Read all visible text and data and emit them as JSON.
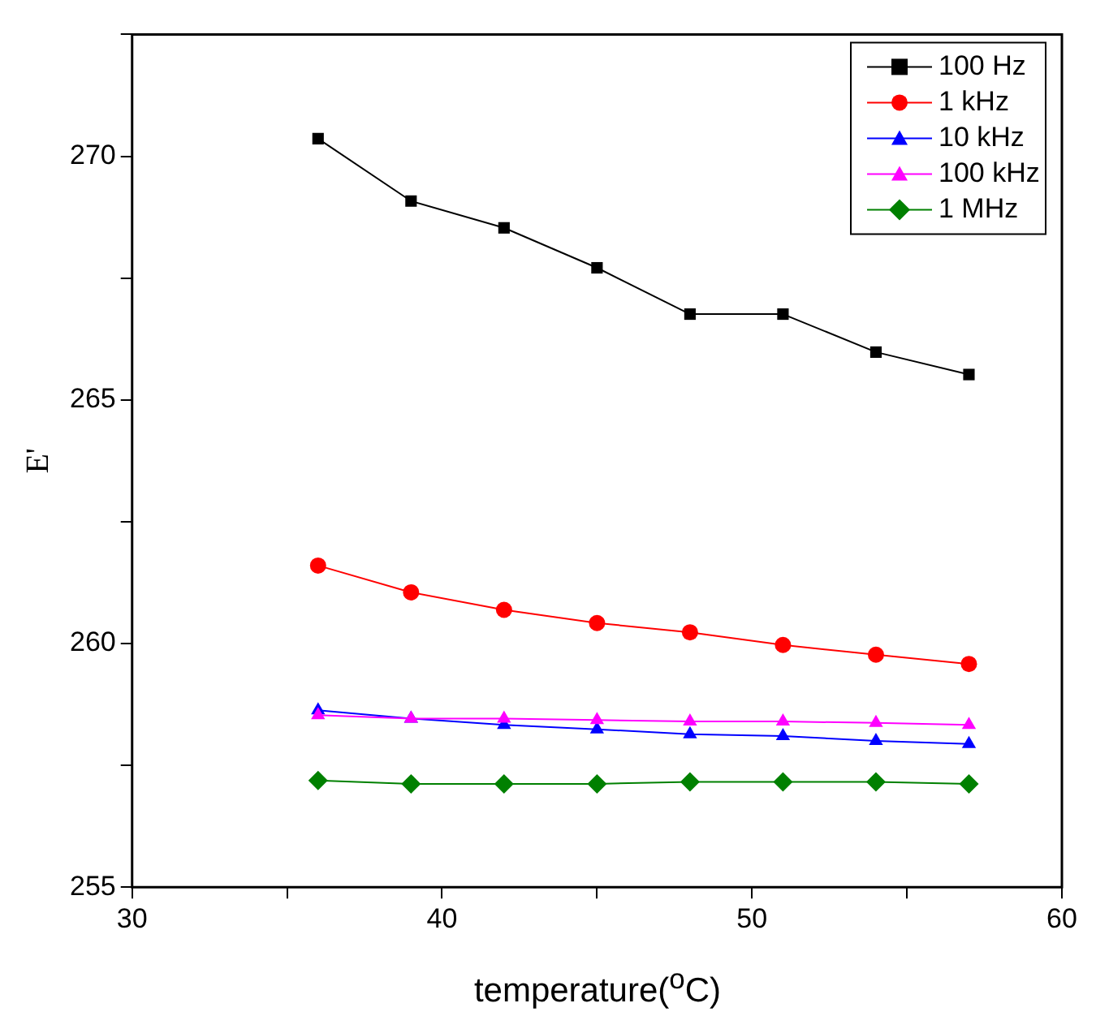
{
  "chart_data": {
    "type": "line",
    "xlabel": "temperature($^{o}$C)",
    "ylabel": "E'",
    "xlim": [
      30,
      60
    ],
    "xticks": [
      30,
      {
        "value": 35,
        "label": null
      },
      40,
      {
        "value": 45,
        "label": null
      },
      50,
      {
        "value": 55,
        "label": null
      },
      60
    ],
    "ylim": [
      255,
      272.5
    ],
    "yticks": [
      255,
      {
        "value": 257.5,
        "label": null
      },
      260,
      {
        "value": 262.5,
        "label": null
      },
      265,
      {
        "value": 267.5,
        "label": null
      },
      270,
      {
        "value": 272.5,
        "label": null
      }
    ],
    "grid": false,
    "legend": "top right",
    "line_style": "solid",
    "x": [
      36,
      39,
      42,
      45,
      48,
      51,
      54,
      57
    ],
    "series": [
      {
        "name": "100 Hz",
        "color": "#000000",
        "marker": "square",
        "values": [
          270.36,
          269.08,
          268.53,
          267.71,
          266.76,
          266.76,
          265.98,
          265.52
        ]
      },
      {
        "name": "1 kHz",
        "color": "#ff0000",
        "marker": "circle",
        "values": [
          261.6,
          261.05,
          260.69,
          260.42,
          260.23,
          259.97,
          259.77,
          259.58
        ]
      },
      {
        "name": "10 kHz",
        "color": "#0000ff",
        "marker": "triangle",
        "values": [
          258.63,
          258.46,
          258.33,
          258.24,
          258.14,
          258.1,
          258.0,
          257.94
        ]
      },
      {
        "name": "100 kHz",
        "color": "#ff00ff",
        "marker": "triangle",
        "values": [
          258.53,
          258.46,
          258.46,
          258.43,
          258.4,
          258.4,
          258.37,
          258.33
        ]
      },
      {
        "name": "1 MHz",
        "color": "#008000",
        "marker": "diamond",
        "values": [
          257.19,
          257.12,
          257.12,
          257.12,
          257.16,
          257.16,
          257.16,
          257.12
        ]
      }
    ]
  }
}
